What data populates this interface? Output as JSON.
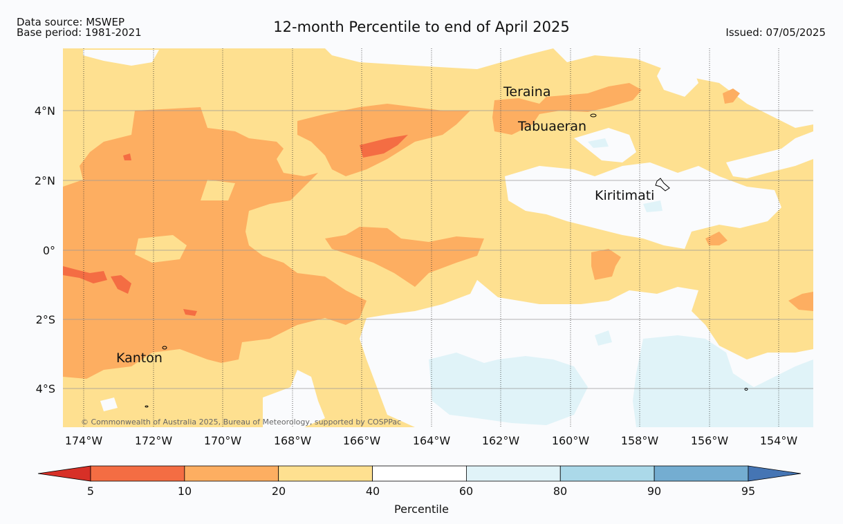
{
  "header": {
    "data_source": "Data source: MSWEP",
    "base_period": "Base period: 1981-2021",
    "title": "12-month Percentile to end of April 2025",
    "issued": "Issued: 07/05/2025"
  },
  "map": {
    "lat_labels": [
      "4°N",
      "2°N",
      "0°",
      "2°S",
      "4°S"
    ],
    "lon_labels": [
      "174°W",
      "172°W",
      "170°W",
      "168°W",
      "166°W",
      "164°W",
      "162°W",
      "160°W",
      "158°W",
      "156°W",
      "154°W"
    ],
    "places": [
      {
        "name": "Teraina"
      },
      {
        "name": "Tabuaeran"
      },
      {
        "name": "Kiritimati"
      },
      {
        "name": "Kanton"
      }
    ],
    "credit": "© Commonwealth of Australia 2025, Bureau of Meteorology, supported by COSPPac"
  },
  "colorbar": {
    "ticks": [
      "5",
      "10",
      "20",
      "40",
      "60",
      "80",
      "90",
      "95"
    ],
    "colors": [
      "#d73027",
      "#f46d43",
      "#fdae61",
      "#fee090",
      "#ffffff",
      "#e0f3f8",
      "#abd9e9",
      "#74add1",
      "#4575b4"
    ],
    "title": "Percentile"
  }
}
